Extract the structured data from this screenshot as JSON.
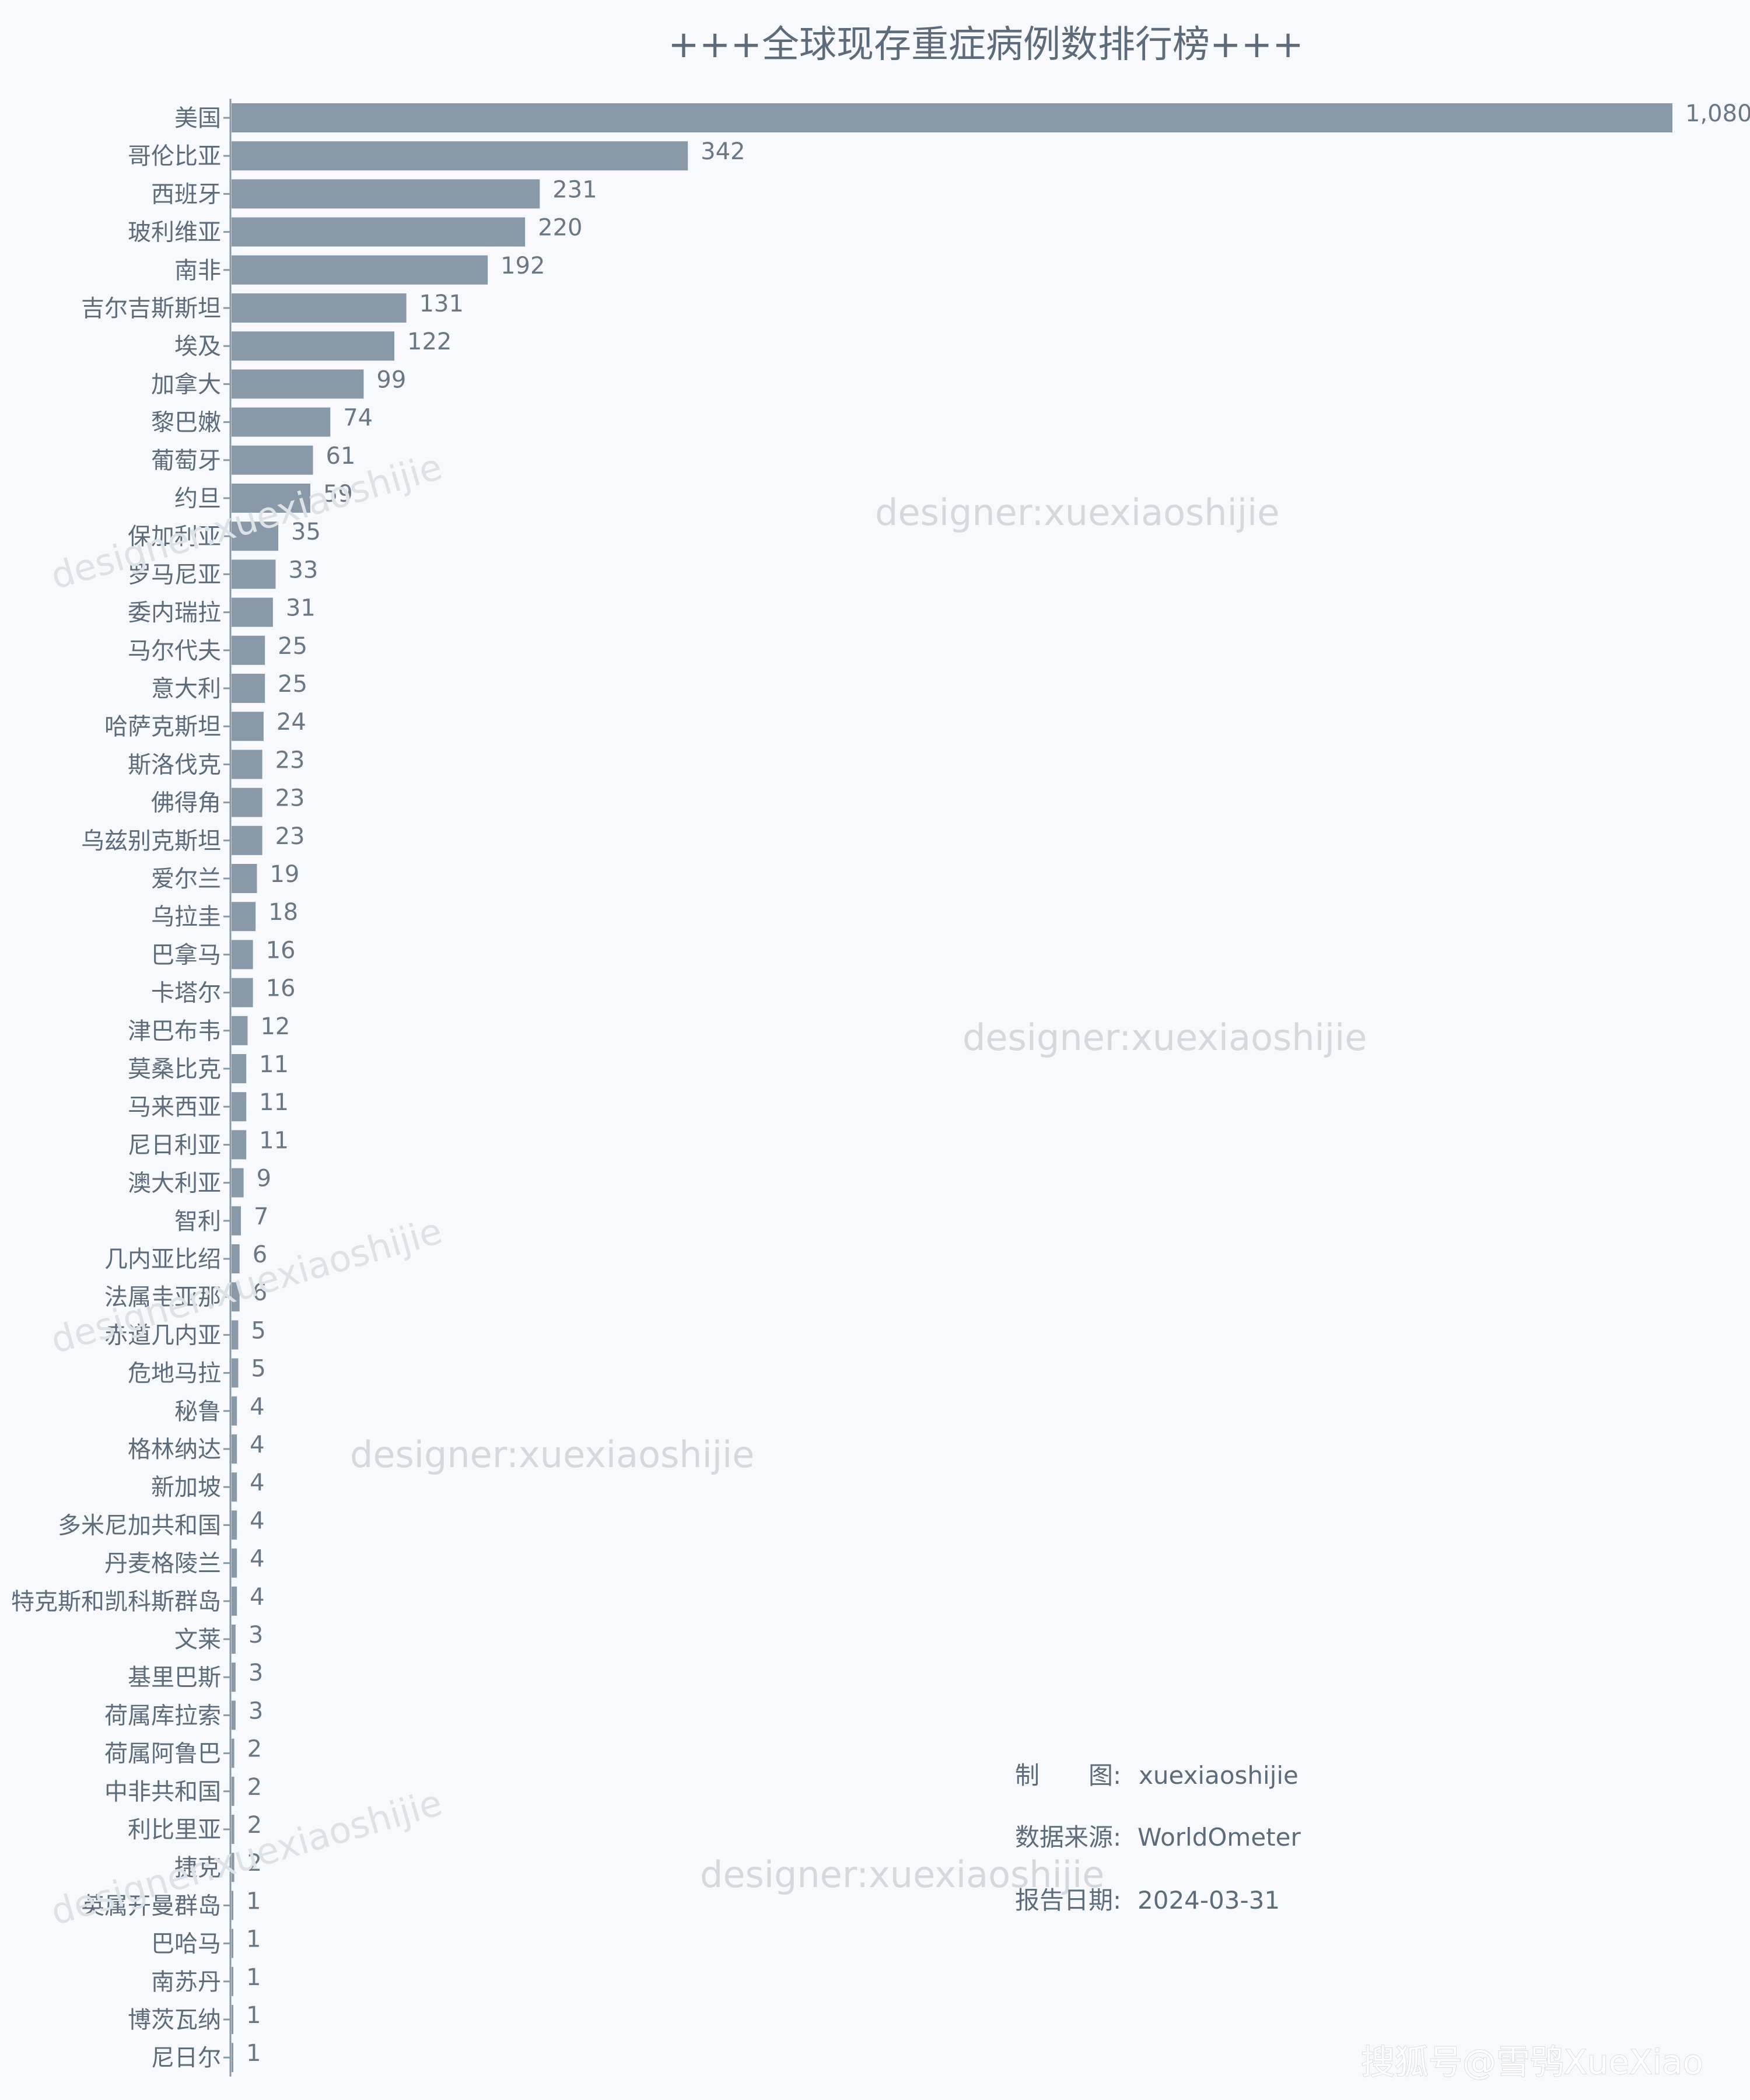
{
  "chart_data": {
    "type": "bar",
    "orientation": "horizontal",
    "title": "+++全球现存重症病例数排行榜+++",
    "categories": [
      "美国",
      "哥伦比亚",
      "西班牙",
      "玻利维亚",
      "南非",
      "吉尔吉斯斯坦",
      "埃及",
      "加拿大",
      "黎巴嫩",
      "葡萄牙",
      "约旦",
      "保加利亚",
      "罗马尼亚",
      "委内瑞拉",
      "马尔代夫",
      "意大利",
      "哈萨克斯坦",
      "斯洛伐克",
      "佛得角",
      "乌兹别克斯坦",
      "爱尔兰",
      "乌拉圭",
      "巴拿马",
      "卡塔尔",
      "津巴布韦",
      "莫桑比克",
      "马来西亚",
      "尼日利亚",
      "澳大利亚",
      "智利",
      "几内亚比绍",
      "法属圭亚那",
      "赤道几内亚",
      "危地马拉",
      "秘鲁",
      "格林纳达",
      "新加坡",
      "多米尼加共和国",
      "丹麦格陵兰",
      "特克斯和凯科斯群岛",
      "文莱",
      "基里巴斯",
      "荷属库拉索",
      "荷属阿鲁巴",
      "中非共和国",
      "利比里亚",
      "捷克",
      "英属开曼群岛",
      "巴哈马",
      "南苏丹",
      "博茨瓦纳",
      "尼日尔"
    ],
    "values": [
      1080,
      342,
      231,
      220,
      192,
      131,
      122,
      99,
      74,
      61,
      59,
      35,
      33,
      31,
      25,
      25,
      24,
      23,
      23,
      23,
      19,
      18,
      16,
      16,
      12,
      11,
      11,
      11,
      9,
      7,
      6,
      6,
      5,
      5,
      4,
      4,
      4,
      4,
      4,
      4,
      3,
      3,
      3,
      2,
      2,
      2,
      2,
      1,
      1,
      1,
      1,
      1
    ],
    "value_labels": [
      "1,080",
      "342",
      "231",
      "220",
      "192",
      "131",
      "122",
      "99",
      "74",
      "61",
      "59",
      "35",
      "33",
      "31",
      "25",
      "25",
      "24",
      "23",
      "23",
      "23",
      "19",
      "18",
      "16",
      "16",
      "12",
      "11",
      "11",
      "11",
      "9",
      "7",
      "6",
      "6",
      "5",
      "5",
      "4",
      "4",
      "4",
      "4",
      "4",
      "4",
      "3",
      "3",
      "3",
      "2",
      "2",
      "2",
      "2",
      "1",
      "1",
      "1",
      "1",
      "1"
    ],
    "xlim": [
      0,
      1080
    ],
    "grid": false,
    "colors": {
      "bar": "#8a99a8",
      "background": "#f7f9fd"
    }
  },
  "watermarks": {
    "designer": "designer:xuexiaoshijie"
  },
  "notes": {
    "maker_label": "制　　图:",
    "maker_value": "xuexiaoshijie",
    "source_label": "数据来源:",
    "source_value": "WorldOmeter",
    "date_label": "报告日期:",
    "date_value": "2024-03-31"
  },
  "corner_watermark": "搜狐号@雪鸮XueXiao"
}
